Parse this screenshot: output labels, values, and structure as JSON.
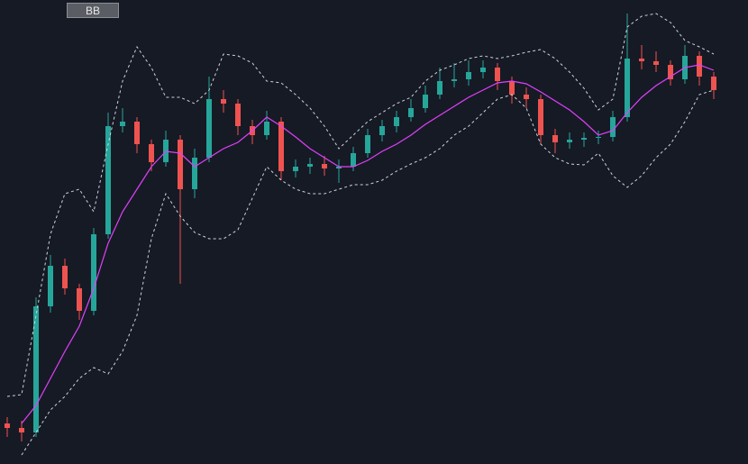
{
  "toolbar": {
    "button": "BB"
  },
  "chart_data": {
    "type": "candlestick",
    "up_color": "#26a69a",
    "down_color": "#ef5350",
    "ylim": [
      0,
      515
    ],
    "open": [
      45,
      40,
      35,
      175,
      220,
      195,
      170,
      255,
      375,
      380,
      355,
      335,
      360,
      305,
      340,
      405,
      400,
      375,
      365,
      380,
      325,
      330,
      333,
      328,
      330,
      345,
      365,
      375,
      385,
      395,
      410,
      425,
      427,
      435,
      440,
      425,
      410,
      405,
      365,
      357,
      360,
      362,
      363,
      385,
      450,
      447,
      443,
      427,
      453,
      430
    ],
    "high": [
      52,
      48,
      185,
      232,
      228,
      200,
      262,
      390,
      395,
      385,
      360,
      370,
      365,
      350,
      430,
      415,
      405,
      382,
      392,
      385,
      338,
      340,
      342,
      338,
      352,
      372,
      382,
      392,
      405,
      420,
      440,
      445,
      448,
      448,
      445,
      430,
      418,
      410,
      372,
      368,
      368,
      370,
      392,
      500,
      465,
      458,
      448,
      465,
      458,
      435
    ],
    "low": [
      30,
      25,
      30,
      168,
      188,
      160,
      165,
      250,
      368,
      345,
      325,
      330,
      200,
      295,
      335,
      390,
      365,
      355,
      360,
      315,
      318,
      322,
      320,
      312,
      325,
      340,
      358,
      368,
      380,
      390,
      405,
      418,
      420,
      428,
      415,
      400,
      395,
      355,
      345,
      350,
      352,
      355,
      358,
      380,
      438,
      435,
      420,
      422,
      420,
      405
    ],
    "close": [
      40,
      35,
      175,
      220,
      195,
      170,
      255,
      375,
      380,
      355,
      335,
      360,
      305,
      340,
      405,
      400,
      375,
      365,
      380,
      325,
      330,
      333,
      328,
      330,
      345,
      365,
      375,
      385,
      395,
      410,
      425,
      427,
      435,
      440,
      425,
      410,
      405,
      365,
      357,
      360,
      362,
      363,
      385,
      450,
      447,
      443,
      427,
      453,
      430,
      415
    ],
    "overlays": [
      {
        "color": "#cfd3dc",
        "dashed": true,
        "values": [
          75,
          77,
          165,
          255,
          300,
          305,
          280,
          355,
          425,
          463,
          440,
          407,
          407,
          400,
          415,
          455,
          453,
          445,
          425,
          423,
          410,
          395,
          375,
          350,
          365,
          380,
          390,
          400,
          407,
          425,
          437,
          443,
          450,
          453,
          450,
          453,
          457,
          460,
          450,
          435,
          417,
          393,
          405,
          485,
          497,
          500,
          490,
          470,
          463,
          455
        ]
      },
      {
        "color": "#cfd3dc",
        "dashed": true,
        "values": [
          null,
          10,
          35,
          60,
          75,
          95,
          107,
          100,
          125,
          165,
          250,
          300,
          275,
          257,
          250,
          250,
          260,
          295,
          330,
          315,
          305,
          300,
          300,
          305,
          310,
          310,
          315,
          325,
          333,
          340,
          350,
          365,
          375,
          390,
          405,
          410,
          395,
          355,
          340,
          333,
          332,
          345,
          320,
          307,
          320,
          340,
          355,
          380,
          410,
          415
        ]
      },
      {
        "color": "#e040fb",
        "dashed": false,
        "values": [
          null,
          45,
          65,
          95,
          125,
          153,
          195,
          245,
          280,
          305,
          330,
          347,
          345,
          330,
          340,
          350,
          357,
          370,
          385,
          375,
          363,
          350,
          340,
          330,
          330,
          337,
          347,
          355,
          365,
          377,
          387,
          397,
          407,
          415,
          423,
          425,
          422,
          413,
          403,
          393,
          380,
          365,
          370,
          390,
          407,
          420,
          430,
          440,
          443,
          437
        ]
      }
    ]
  }
}
